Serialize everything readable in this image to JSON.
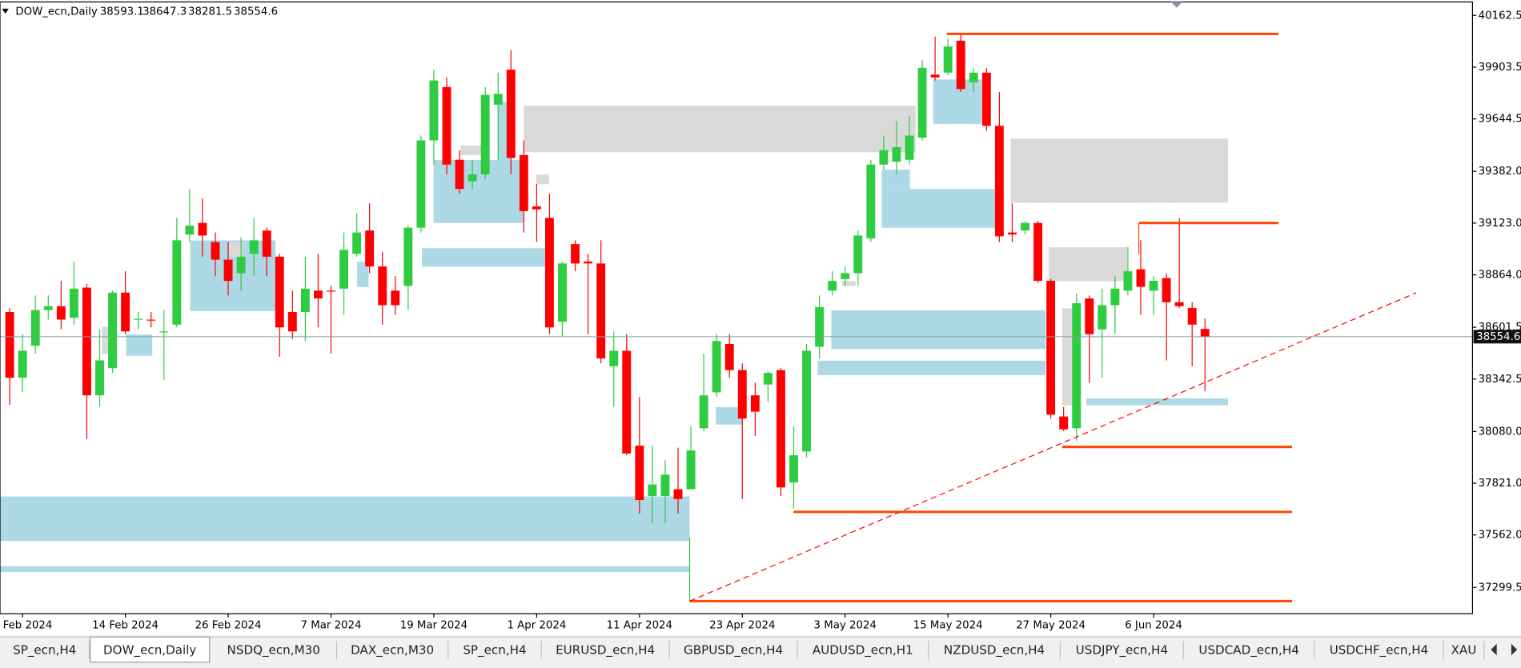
{
  "chart_data": {
    "type": "candlestick",
    "symbol": "DOW_ecn,Daily",
    "up_color": "#2ecc40",
    "down_color": "#ff0000",
    "ylim": [
      37168,
      40230
    ],
    "yticks": [
      40162.5,
      39903.5,
      39644.5,
      {
        "value": 39382,
        "label": "39382.0"
      },
      {
        "value": 39123,
        "label": "39123.0"
      },
      {
        "value": 38864,
        "label": "38864.0"
      },
      38601.5,
      38342.5,
      {
        "value": 38080,
        "label": "38080.0"
      },
      {
        "value": 37821,
        "label": "37821.0"
      },
      {
        "value": 37562,
        "label": "37562.0"
      },
      37299.5
    ],
    "xticks": [
      {
        "value": 1,
        "label": "2 Feb 2024"
      },
      {
        "value": 9,
        "label": "14 Feb 2024"
      },
      {
        "value": 17,
        "label": "26 Feb 2024"
      },
      {
        "value": 25,
        "label": "7 Mar 2024"
      },
      {
        "value": 33,
        "label": "19 Mar 2024"
      },
      {
        "value": 41,
        "label": "1 Apr 2024"
      },
      {
        "value": 49,
        "label": "11 Apr 2024"
      },
      {
        "value": 57,
        "label": "23 Apr 2024"
      },
      {
        "value": 65,
        "label": "3 May 2024"
      },
      {
        "value": 73,
        "label": "15 May 2024"
      },
      {
        "value": 81,
        "label": "27 May 2024"
      },
      {
        "value": 89,
        "label": "6 Jun 2024"
      }
    ],
    "open": [
      38678,
      38349,
      38509,
      38688,
      38707,
      38649,
      38800,
      38261,
      38397,
      38775,
      38640,
      38640,
      38576,
      38615,
      39066,
      39124,
      39028,
      38940,
      38872,
      38969,
      39086,
      38955,
      38678,
      38678,
      38785,
      38785,
      38795,
      38969,
      39086,
      38906,
      38785,
      38809,
      39100,
      39537,
      39804,
      39440,
      39333,
      39367,
      39716,
      39891,
      39464,
      39207,
      39149,
      38630,
      39018,
      38931,
      38921,
      38407,
      38484,
      38009,
      37757,
      37757,
      37791,
      37791,
      38096,
      38276,
      38518,
      38387,
      38261,
      38315,
      38387,
      37825,
      37980,
      38504,
      38785,
      38843,
      38872,
      39047,
      39416,
      39430,
      39440,
      39551,
      39866,
      39876,
      40036,
      39828,
      39876,
      39610,
      39076,
      39086,
      39124,
      38834,
      38155,
      38096,
      38746,
      38591,
      38712,
      38785,
      38892,
      38785,
      38848,
      38727,
      38698,
      38593.1
    ],
    "high": [
      38698,
      38567,
      38761,
      38761,
      38834,
      38931,
      38819,
      38591,
      38785,
      38882,
      38678,
      38678,
      38688,
      39149,
      39294,
      39246,
      39076,
      39028,
      39052,
      39149,
      39100,
      38969,
      38785,
      38955,
      38969,
      38809,
      39076,
      39173,
      39222,
      38979,
      38858,
      39110,
      39561,
      39891,
      39852,
      39488,
      39440,
      39804,
      39876,
      39988,
      39537,
      39319,
      39270,
      38931,
      39037,
      38969,
      39037,
      38581,
      38567,
      38252,
      38009,
      37936,
      37999,
      38106,
      38470,
      38567,
      38567,
      38421,
      38324,
      38382,
      38397,
      38106,
      38518,
      38761,
      38882,
      38906,
      39086,
      39440,
      39561,
      39634,
      39658,
      39939,
      40056,
      40046,
      40070,
      39900,
      39900,
      39779,
      39222,
      39134,
      39134,
      38843,
      38203,
      38770,
      38761,
      38795,
      38858,
      39003,
      39037,
      38858,
      38872,
      39149,
      38727,
      38647.3
    ],
    "low": [
      38213,
      38276,
      38470,
      38640,
      38591,
      38615,
      38043,
      38203,
      38373,
      38567,
      38591,
      38601,
      38339,
      38601,
      39028,
      38955,
      38858,
      38761,
      38785,
      38858,
      38858,
      38455,
      38543,
      38533,
      38601,
      38470,
      38664,
      38955,
      38872,
      38615,
      38664,
      38688,
      39076,
      39416,
      39367,
      39270,
      39294,
      39343,
      39440,
      39367,
      39076,
      39028,
      38567,
      38552,
      38882,
      38567,
      38421,
      38203,
      37961,
      37670,
      37621,
      37621,
      37670,
      37791,
      38082,
      38252,
      38349,
      37742,
      38058,
      38227,
      37757,
      37694,
      37951,
      38446,
      38761,
      38809,
      38809,
      39028,
      39391,
      39367,
      39416,
      39537,
      39837,
      39862,
      39779,
      39779,
      39585,
      39028,
      39028,
      39066,
      38824,
      38145,
      38082,
      38033,
      38324,
      38349,
      38567,
      38761,
      38664,
      38664,
      38436,
      38698,
      38407,
      38281.5
    ],
    "close": [
      38349,
      38484,
      38688,
      38707,
      38640,
      38795,
      38261,
      38436,
      38775,
      38581,
      38644,
      38635,
      38581,
      39037,
      39110,
      39061,
      38940,
      38834,
      38955,
      39037,
      38955,
      38601,
      38581,
      38795,
      38746,
      38780,
      38989,
      39076,
      38906,
      38712,
      38712,
      39100,
      39537,
      39837,
      39416,
      39294,
      39367,
      39765,
      39770,
      39449,
      39183,
      39192,
      38601,
      38921,
      38921,
      38921,
      38446,
      38484,
      37970,
      37737,
      37815,
      37864,
      37742,
      37985,
      38261,
      38533,
      38387,
      38145,
      38179,
      38373,
      37800,
      37961,
      38484,
      38703,
      38834,
      38872,
      39061,
      39416,
      39488,
      39503,
      39561,
      39900,
      39852,
      40007,
      39794,
      39876,
      39610,
      39057,
      39066,
      39124,
      38834,
      38164,
      38091,
      38722,
      38567,
      38712,
      38795,
      38882,
      38804,
      38834,
      38727,
      38707,
      38615,
      38554.6
    ]
  },
  "tabs": [
    "SP_ecn,H4",
    "DOW_ecn,Daily",
    "NSDQ_ecn,M30",
    "DAX_ecn,M30",
    "SP_ecn,H4",
    "EURUSD_ecn,H4",
    "GBPUSD_ecn,H4",
    "AUDUSD_ecn,H1",
    "NZDUSD_ecn,H4",
    "USDJPY_ecn,H4",
    "USDCAD_ecn,H4",
    "USDCHF_ecn,H4",
    "XAU"
  ],
  "active_tab": 1
}
